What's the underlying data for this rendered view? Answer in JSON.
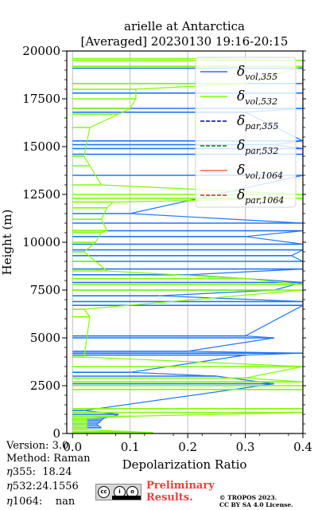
{
  "chart_data": {
    "type": "line",
    "title_line1": "arielle at Antarctica",
    "title_line2": "[Averaged] 20230130 19:16-20:15",
    "xlabel": "Depolarization Ratio",
    "ylabel": "Height (m)",
    "xlim": [
      -0.01,
      0.4
    ],
    "ylim": [
      0,
      20000
    ],
    "xticks": [
      "0.0",
      "0.1",
      "0.2",
      "0.3",
      "0.4"
    ],
    "xtick_values": [
      0.0,
      0.1,
      0.2,
      0.3,
      0.4
    ],
    "yticks": [
      "0",
      "2500",
      "5000",
      "7500",
      "10000",
      "12500",
      "15000",
      "17500",
      "20000"
    ],
    "ytick_values": [
      0,
      2500,
      5000,
      7500,
      10000,
      12500,
      15000,
      17500,
      20000
    ],
    "grid": true,
    "legend_position": "top-right",
    "series": [
      {
        "name": "vol,355",
        "color": "#1f77ff",
        "style": "solid",
        "points": [
          [
            0.05,
            300
          ],
          [
            0.045,
            400
          ],
          [
            0.042,
            500
          ],
          [
            0.048,
            600
          ],
          [
            0.05,
            700
          ],
          [
            0.055,
            800
          ],
          [
            0.07,
            900
          ],
          [
            0.08,
            1000
          ],
          [
            0.02,
            1200
          ],
          [
            0.35,
            2600
          ],
          [
            0.25,
            3000
          ],
          [
            0.1,
            3200
          ],
          [
            0.3,
            4100
          ],
          [
            0.4,
            4200
          ],
          [
            0.2,
            4300
          ],
          [
            0.35,
            5000
          ],
          [
            0.3,
            5100
          ],
          [
            0.4,
            6700
          ],
          [
            0.4,
            6900
          ],
          [
            0.15,
            7200
          ],
          [
            0.35,
            7500
          ],
          [
            0.4,
            7900
          ],
          [
            0.2,
            8300
          ],
          [
            0.4,
            8600
          ],
          [
            0.4,
            9000
          ],
          [
            0.38,
            9300
          ],
          [
            0.4,
            9600
          ],
          [
            0.4,
            9900
          ],
          [
            0.3,
            10300
          ],
          [
            0.4,
            10600
          ],
          [
            0.4,
            11000
          ],
          [
            0.1,
            11500
          ],
          [
            0.4,
            13500
          ],
          [
            0.4,
            14600
          ],
          [
            0.4,
            14900
          ],
          [
            0.35,
            15100
          ],
          [
            0.4,
            15300
          ],
          [
            0.3,
            16800
          ],
          [
            0.4,
            17000
          ],
          [
            0.4,
            17800
          ],
          [
            0.4,
            18300
          ],
          [
            0.4,
            19100
          ]
        ]
      },
      {
        "name": "vol,532",
        "color": "#7fff00",
        "style": "solid",
        "points": [
          [
            0.0,
            0
          ],
          [
            0.14,
            50
          ],
          [
            0.1,
            100
          ],
          [
            0.025,
            200
          ],
          [
            0.025,
            300
          ],
          [
            0.025,
            400
          ],
          [
            0.025,
            500
          ],
          [
            0.025,
            600
          ],
          [
            0.025,
            700
          ],
          [
            0.025,
            800
          ],
          [
            0.1,
            900
          ],
          [
            0.4,
            1100
          ],
          [
            0.4,
            1300
          ],
          [
            0.4,
            2300
          ],
          [
            0.4,
            2500
          ],
          [
            0.4,
            2700
          ],
          [
            0.3,
            2900
          ],
          [
            0.4,
            3500
          ],
          [
            0.02,
            4000
          ],
          [
            0.03,
            6100
          ],
          [
            0.02,
            6500
          ],
          [
            0.4,
            7500
          ],
          [
            0.4,
            7800
          ],
          [
            0.3,
            8100
          ],
          [
            0.06,
            8500
          ],
          [
            0.04,
            9000
          ],
          [
            0.02,
            9500
          ],
          [
            0.04,
            10000
          ],
          [
            0.05,
            10500
          ],
          [
            0.06,
            10600
          ],
          [
            0.05,
            11200
          ],
          [
            0.06,
            11800
          ],
          [
            0.07,
            12100
          ],
          [
            0.4,
            12300
          ],
          [
            0.4,
            12500
          ],
          [
            0.05,
            13000
          ],
          [
            0.03,
            14000
          ],
          [
            0.02,
            14500
          ],
          [
            0.03,
            16000
          ],
          [
            0.08,
            16700
          ],
          [
            0.1,
            17000
          ],
          [
            0.11,
            17500
          ],
          [
            0.11,
            18000
          ],
          [
            0.3,
            18300
          ],
          [
            0.4,
            19200
          ],
          [
            0.4,
            19500
          ],
          [
            0.2,
            19600
          ]
        ]
      },
      {
        "name": "par,355",
        "color": "#0000cc",
        "style": "dashed",
        "points": []
      },
      {
        "name": "par,532",
        "color": "#008000",
        "style": "dashed",
        "points": []
      },
      {
        "name": "vol,1064",
        "color": "#ff6a3d",
        "style": "solid",
        "points": []
      },
      {
        "name": "par,1064",
        "color": "#dd2233",
        "style": "dashed",
        "points": []
      }
    ]
  },
  "info": {
    "version": "Version: 3.0",
    "method": "Method: Raman",
    "eta355_label": "355:",
    "eta355_value": "18.24",
    "eta532_label": "532:",
    "eta532_value": "24.1556",
    "eta1064_label": "1064:",
    "eta1064_value": "nan"
  },
  "footer": {
    "prelim_line1": "Preliminary",
    "prelim_line2": "Results.",
    "copyright_line1": "© TROPOS 2023.",
    "copyright_line2": "CC BY SA 4.0 License."
  }
}
